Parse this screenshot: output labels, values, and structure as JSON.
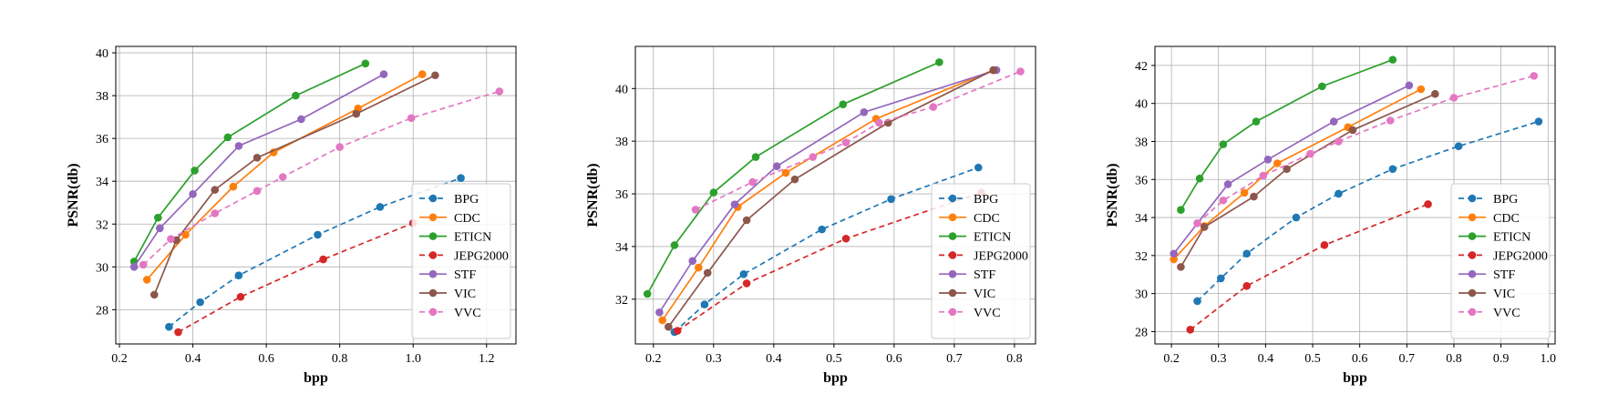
{
  "colors": {
    "BPG": "#1f77b4",
    "CDC": "#ff7f0e",
    "ETICN": "#2ca02c",
    "JEPG2000": "#d62728",
    "STF": "#9467bd",
    "VIC": "#8c564b",
    "VVC": "#e377c2"
  },
  "chart_data": [
    {
      "type": "line",
      "xlabel": "bpp",
      "ylabel": "PSNR(db)",
      "xlim": [
        0.19,
        1.28
      ],
      "ylim": [
        26.4,
        40.3
      ],
      "xticks": [
        0.2,
        0.4,
        0.6,
        0.8,
        1.0,
        1.2
      ],
      "xtick_labels": [
        "0.2",
        "0.4",
        "0.6",
        "0.8",
        "1.0",
        "1.2"
      ],
      "yticks": [
        28,
        30,
        32,
        34,
        36,
        38,
        40
      ],
      "ytick_labels": [
        "28",
        "30",
        "32",
        "34",
        "36",
        "38",
        "40"
      ],
      "grid": true,
      "legend_position": "lower-right",
      "series": [
        {
          "name": "BPG",
          "dashed": true,
          "x": [
            0.335,
            0.42,
            0.525,
            0.74,
            0.91,
            1.13
          ],
          "y": [
            27.2,
            28.35,
            29.6,
            31.5,
            32.8,
            34.15
          ]
        },
        {
          "name": "CDC",
          "dashed": false,
          "x": [
            0.275,
            0.38,
            0.51,
            0.62,
            0.85,
            1.025
          ],
          "y": [
            29.4,
            31.5,
            33.75,
            35.35,
            37.4,
            39.0
          ]
        },
        {
          "name": "ETICN",
          "dashed": false,
          "x": [
            0.24,
            0.305,
            0.405,
            0.495,
            0.68,
            0.87
          ],
          "y": [
            30.25,
            32.3,
            34.5,
            36.05,
            38.0,
            39.5
          ]
        },
        {
          "name": "JEPG2000",
          "dashed": true,
          "x": [
            0.36,
            0.53,
            0.755,
            1.0
          ],
          "y": [
            26.95,
            28.6,
            30.35,
            32.05
          ]
        },
        {
          "name": "STF",
          "dashed": false,
          "x": [
            0.24,
            0.31,
            0.4,
            0.525,
            0.695,
            0.92
          ],
          "y": [
            30.0,
            31.8,
            33.4,
            35.65,
            36.9,
            39.0
          ]
        },
        {
          "name": "VIC",
          "dashed": false,
          "x": [
            0.295,
            0.355,
            0.46,
            0.575,
            0.845,
            1.06
          ],
          "y": [
            28.7,
            31.25,
            33.6,
            35.1,
            37.15,
            38.95
          ]
        },
        {
          "name": "VVC",
          "dashed": true,
          "x": [
            0.265,
            0.34,
            0.46,
            0.575,
            0.645,
            0.8,
            0.995,
            1.235
          ],
          "y": [
            30.1,
            31.3,
            32.5,
            33.55,
            34.2,
            35.6,
            36.95,
            38.2
          ]
        }
      ]
    },
    {
      "type": "line",
      "xlabel": "bpp",
      "ylabel": "PSNR(db)",
      "xlim": [
        0.17,
        0.835
      ],
      "ylim": [
        30.3,
        41.6
      ],
      "xticks": [
        0.2,
        0.3,
        0.4,
        0.5,
        0.6,
        0.7,
        0.8
      ],
      "xtick_labels": [
        "0.2",
        "0.3",
        "0.4",
        "0.5",
        "0.6",
        "0.7",
        "0.8"
      ],
      "yticks": [
        32,
        34,
        36,
        38,
        40
      ],
      "ytick_labels": [
        "32",
        "34",
        "36",
        "38",
        "40"
      ],
      "grid": true,
      "legend_position": "lower-right",
      "series": [
        {
          "name": "BPG",
          "dashed": true,
          "x": [
            0.235,
            0.285,
            0.35,
            0.48,
            0.595,
            0.74
          ],
          "y": [
            30.75,
            31.8,
            32.95,
            34.65,
            35.8,
            37.0
          ]
        },
        {
          "name": "CDC",
          "dashed": false,
          "x": [
            0.215,
            0.275,
            0.34,
            0.42,
            0.57,
            0.765
          ],
          "y": [
            31.2,
            33.2,
            35.5,
            36.8,
            38.85,
            40.7
          ]
        },
        {
          "name": "ETICN",
          "dashed": false,
          "x": [
            0.19,
            0.235,
            0.3,
            0.37,
            0.515,
            0.675
          ],
          "y": [
            32.2,
            34.05,
            36.05,
            37.4,
            39.4,
            41.0
          ]
        },
        {
          "name": "JEPG2000",
          "dashed": true,
          "x": [
            0.24,
            0.355,
            0.52,
            0.745
          ],
          "y": [
            30.8,
            32.6,
            34.3,
            36.05
          ]
        },
        {
          "name": "STF",
          "dashed": false,
          "x": [
            0.21,
            0.265,
            0.335,
            0.405,
            0.55,
            0.77
          ],
          "y": [
            31.5,
            33.45,
            35.6,
            37.05,
            39.1,
            40.7
          ]
        },
        {
          "name": "VIC",
          "dashed": false,
          "x": [
            0.225,
            0.29,
            0.355,
            0.435,
            0.59,
            0.765
          ],
          "y": [
            30.95,
            33.0,
            35.0,
            36.55,
            38.7,
            40.7
          ]
        },
        {
          "name": "VVC",
          "dashed": true,
          "x": [
            0.27,
            0.365,
            0.465,
            0.52,
            0.575,
            0.665,
            0.81
          ],
          "y": [
            35.4,
            36.45,
            37.4,
            37.95,
            38.7,
            39.3,
            40.65
          ]
        }
      ]
    },
    {
      "type": "line",
      "xlabel": "bpp",
      "ylabel": "PSNR(db)",
      "xlim": [
        0.165,
        1.015
      ],
      "ylim": [
        27.35,
        43.0
      ],
      "xticks": [
        0.2,
        0.3,
        0.4,
        0.5,
        0.6,
        0.7,
        0.8,
        0.9,
        1.0
      ],
      "xtick_labels": [
        "0.2",
        "0.3",
        "0.4",
        "0.5",
        "0.6",
        "0.7",
        "0.8",
        "0.9",
        "1.0"
      ],
      "yticks": [
        28,
        30,
        32,
        34,
        36,
        38,
        40,
        42
      ],
      "ytick_labels": [
        "28",
        "30",
        "32",
        "34",
        "36",
        "38",
        "40",
        "42"
      ],
      "grid": true,
      "legend_position": "lower-right",
      "series": [
        {
          "name": "BPG",
          "dashed": true,
          "x": [
            0.255,
            0.305,
            0.36,
            0.465,
            0.555,
            0.67,
            0.81,
            0.98
          ],
          "y": [
            29.6,
            30.8,
            32.1,
            34.0,
            35.25,
            36.55,
            37.75,
            39.05
          ]
        },
        {
          "name": "CDC",
          "dashed": false,
          "x": [
            0.205,
            0.27,
            0.355,
            0.425,
            0.575,
            0.73
          ],
          "y": [
            31.8,
            33.55,
            35.3,
            36.85,
            38.75,
            40.75
          ]
        },
        {
          "name": "ETICN",
          "dashed": false,
          "x": [
            0.22,
            0.26,
            0.31,
            0.38,
            0.52,
            0.67
          ],
          "y": [
            34.4,
            36.05,
            37.85,
            39.05,
            40.9,
            42.3
          ]
        },
        {
          "name": "JEPG2000",
          "dashed": true,
          "x": [
            0.24,
            0.36,
            0.525,
            0.745
          ],
          "y": [
            28.1,
            30.4,
            32.55,
            34.7
          ]
        },
        {
          "name": "STF",
          "dashed": false,
          "x": [
            0.205,
            0.32,
            0.405,
            0.545,
            0.705
          ],
          "y": [
            32.1,
            35.75,
            37.05,
            39.05,
            40.95
          ]
        },
        {
          "name": "VIC",
          "dashed": false,
          "x": [
            0.22,
            0.27,
            0.375,
            0.445,
            0.585,
            0.76
          ],
          "y": [
            31.4,
            33.5,
            35.1,
            36.55,
            38.6,
            40.5
          ]
        },
        {
          "name": "VVC",
          "dashed": true,
          "x": [
            0.255,
            0.31,
            0.395,
            0.495,
            0.555,
            0.665,
            0.8,
            0.97
          ],
          "y": [
            33.7,
            34.9,
            36.2,
            37.35,
            38.0,
            39.1,
            40.3,
            41.45
          ]
        }
      ]
    }
  ]
}
